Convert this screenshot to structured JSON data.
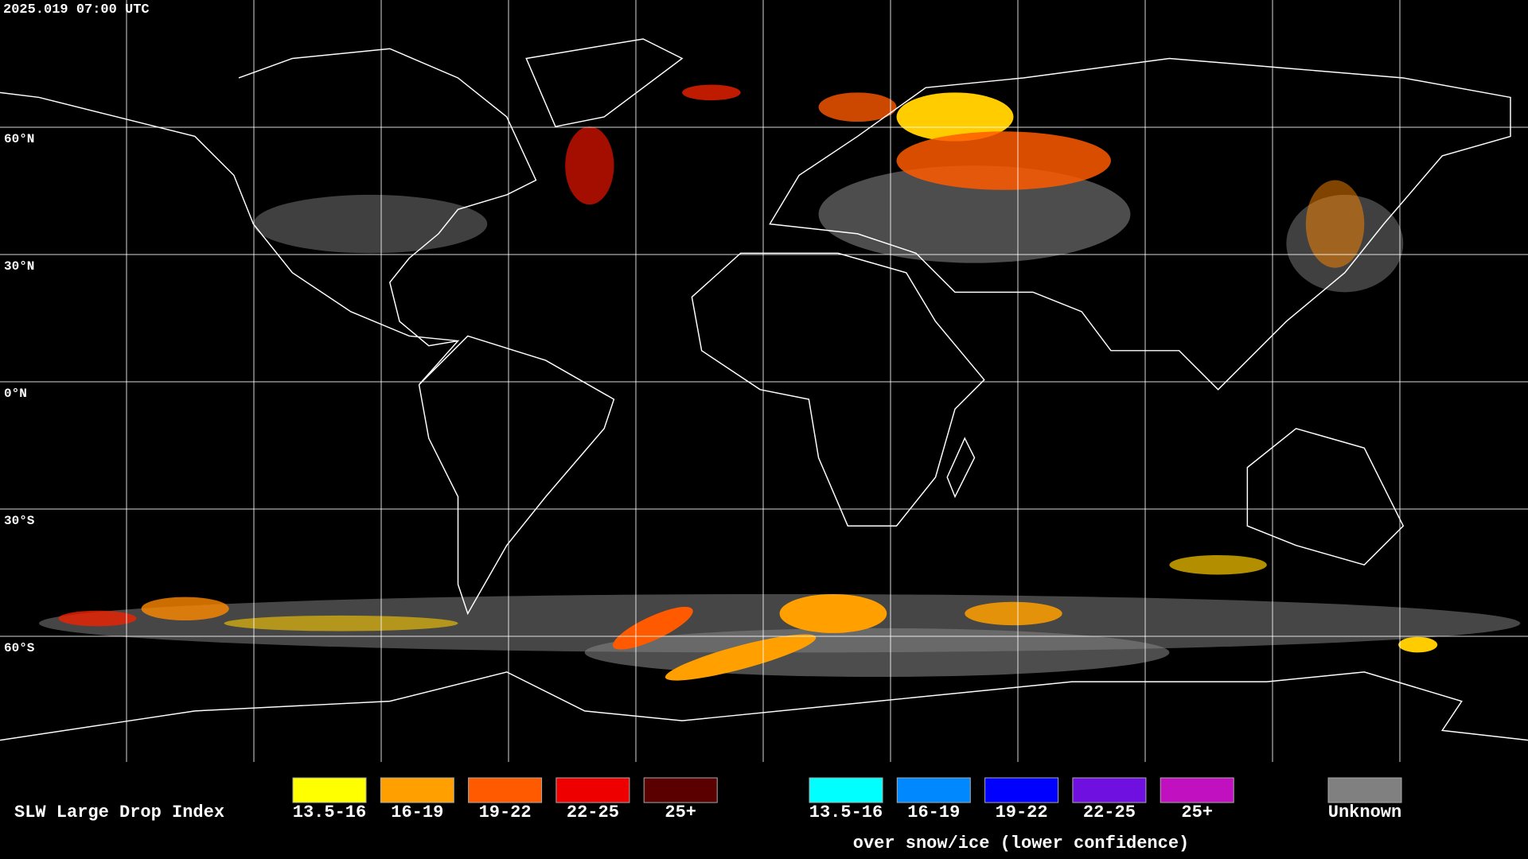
{
  "header": {
    "timestamp": "2025.019 07:00 UTC"
  },
  "map": {
    "latitude_labels": [
      "60°N",
      "30°N",
      "0°N",
      "30°S",
      "60°S"
    ]
  },
  "legend": {
    "title": "SLW Large Drop Index",
    "items": [
      {
        "label": "13.5-16",
        "color": "#ffff00"
      },
      {
        "label": "16-19",
        "color": "#ffa000"
      },
      {
        "label": "19-22",
        "color": "#ff5a00"
      },
      {
        "label": "22-25",
        "color": "#ee0000"
      },
      {
        "label": "25+",
        "color": "#5a0000"
      }
    ],
    "snow_items": [
      {
        "label": "13.5-16",
        "color": "#00ffff"
      },
      {
        "label": "16-19",
        "color": "#0088ff"
      },
      {
        "label": "19-22",
        "color": "#0000ff"
      },
      {
        "label": "22-25",
        "color": "#7010e0"
      },
      {
        "label": "25+",
        "color": "#c010c0"
      }
    ],
    "snow_caption": "over snow/ice (lower confidence)",
    "unknown": {
      "label": "Unknown",
      "color": "#808080"
    }
  }
}
